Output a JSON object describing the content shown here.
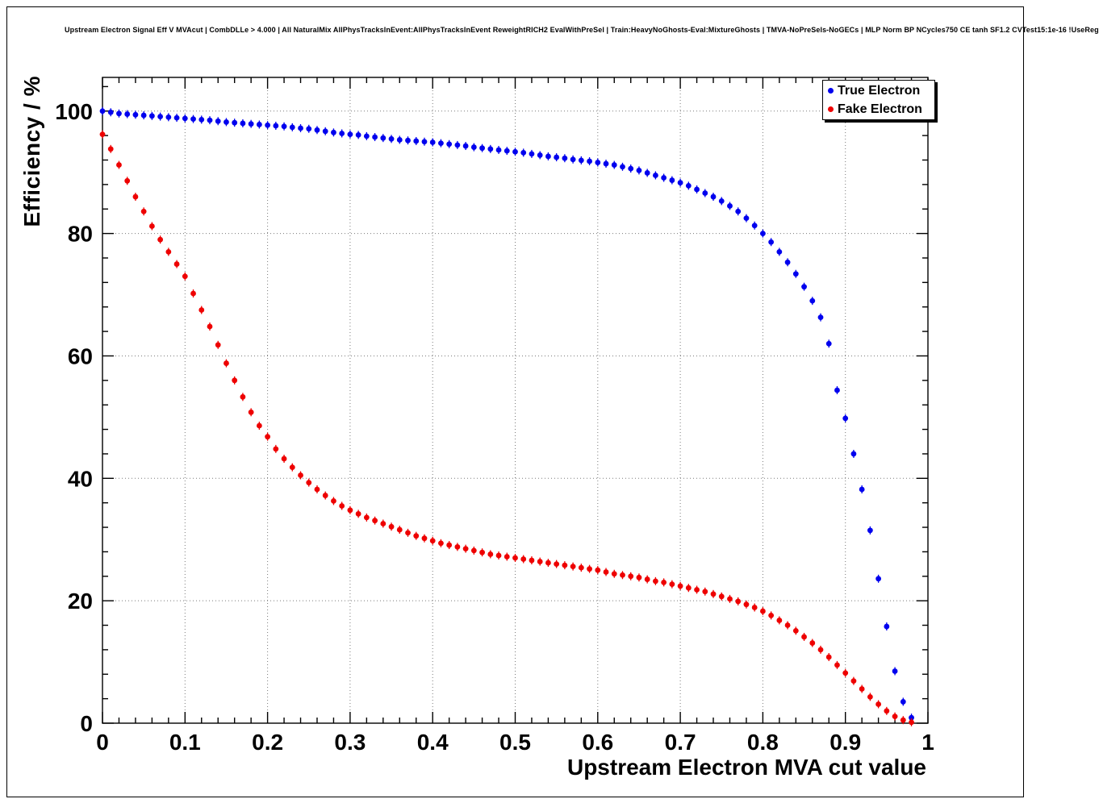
{
  "title": "Upstream Electron Signal Eff V MVAcut | CombDLLe > 4.000 | All NaturalMix AllPhysTracksInEvent:AllPhysTracksInEvent ReweightRICH2 EvalWithPreSel | Train:HeavyNoGhosts-Eval:MixtureGhosts | TMVA-NoPreSels-NoGECs | MLP Norm BP NCycles750 CE tanh SF1.2 CVTest15:1e-16 !UseReg",
  "chart_data": {
    "type": "scatter",
    "title": "Upstream Electron Signal Eff V MVAcut",
    "xlabel": "Upstream Electron MVA cut value",
    "ylabel": "Efficiency / %",
    "xlim": [
      0,
      1
    ],
    "ylim": [
      0,
      105.5
    ],
    "xticks": [
      0,
      0.1,
      0.2,
      0.3,
      0.4,
      0.5,
      0.6,
      0.7,
      0.8,
      0.9,
      1
    ],
    "xtick_labels": [
      "0",
      "0.1",
      "0.2",
      "0.3",
      "0.4",
      "0.5",
      "0.6",
      "0.7",
      "0.8",
      "0.9",
      "1"
    ],
    "yticks": [
      0,
      20,
      40,
      60,
      80,
      100
    ],
    "grid": "dotted",
    "legend_position": "top-right",
    "marker": "filled-circle",
    "x": [
      0.0,
      0.01,
      0.02,
      0.03,
      0.04,
      0.05,
      0.06,
      0.07,
      0.08,
      0.09,
      0.1,
      0.11,
      0.12,
      0.13,
      0.14,
      0.15,
      0.16,
      0.17,
      0.18,
      0.19,
      0.2,
      0.21,
      0.22,
      0.23,
      0.24,
      0.25,
      0.26,
      0.27,
      0.28,
      0.29,
      0.3,
      0.31,
      0.32,
      0.33,
      0.34,
      0.35,
      0.36,
      0.37,
      0.38,
      0.39,
      0.4,
      0.41,
      0.42,
      0.43,
      0.44,
      0.45,
      0.46,
      0.47,
      0.48,
      0.49,
      0.5,
      0.51,
      0.52,
      0.53,
      0.54,
      0.55,
      0.56,
      0.57,
      0.58,
      0.59,
      0.6,
      0.61,
      0.62,
      0.63,
      0.64,
      0.65,
      0.66,
      0.67,
      0.68,
      0.69,
      0.7,
      0.71,
      0.72,
      0.73,
      0.74,
      0.75,
      0.76,
      0.77,
      0.78,
      0.79,
      0.8,
      0.81,
      0.82,
      0.83,
      0.84,
      0.85,
      0.86,
      0.87,
      0.88,
      0.89,
      0.9,
      0.91,
      0.92,
      0.93,
      0.94,
      0.95,
      0.96,
      0.97,
      0.98
    ],
    "series": [
      {
        "name": "True Electron",
        "color": "#0000ee",
        "y": [
          100.0,
          99.8,
          99.6,
          99.5,
          99.4,
          99.3,
          99.2,
          99.1,
          99.0,
          98.9,
          98.8,
          98.7,
          98.6,
          98.5,
          98.35,
          98.2,
          98.1,
          98.0,
          97.9,
          97.8,
          97.7,
          97.6,
          97.5,
          97.35,
          97.2,
          97.1,
          96.9,
          96.7,
          96.5,
          96.35,
          96.2,
          96.1,
          95.9,
          95.75,
          95.6,
          95.45,
          95.3,
          95.2,
          95.1,
          95.0,
          94.9,
          94.75,
          94.6,
          94.45,
          94.3,
          94.1,
          93.95,
          93.8,
          93.65,
          93.5,
          93.35,
          93.2,
          93.0,
          92.8,
          92.6,
          92.45,
          92.3,
          92.1,
          91.95,
          91.8,
          91.6,
          91.4,
          91.2,
          90.9,
          90.6,
          90.3,
          89.9,
          89.5,
          89.1,
          88.7,
          88.3,
          87.8,
          87.2,
          86.6,
          86.0,
          85.3,
          84.5,
          83.6,
          82.5,
          81.3,
          80.0,
          78.6,
          77.0,
          75.3,
          73.4,
          71.3,
          69.0,
          66.3,
          62.0,
          54.4,
          49.8,
          44.0,
          38.2,
          31.5,
          23.6,
          15.8,
          8.5,
          3.5,
          0.9
        ]
      },
      {
        "name": "Fake Electron",
        "color": "#ee0000",
        "y": [
          96.2,
          93.8,
          91.2,
          88.6,
          86.0,
          83.6,
          81.2,
          79.0,
          77.0,
          75.0,
          73.0,
          70.2,
          67.5,
          64.8,
          61.8,
          58.8,
          56.0,
          53.3,
          50.8,
          48.6,
          46.8,
          44.8,
          43.2,
          41.8,
          40.5,
          39.3,
          38.2,
          37.2,
          36.3,
          35.5,
          34.8,
          34.2,
          33.6,
          33.1,
          32.6,
          32.1,
          31.6,
          31.1,
          30.6,
          30.2,
          29.8,
          29.4,
          29.1,
          28.8,
          28.5,
          28.2,
          27.9,
          27.6,
          27.4,
          27.2,
          27.0,
          26.8,
          26.6,
          26.4,
          26.2,
          26.0,
          25.8,
          25.6,
          25.4,
          25.2,
          25.0,
          24.7,
          24.4,
          24.2,
          24.0,
          23.8,
          23.5,
          23.2,
          23.0,
          22.7,
          22.4,
          22.1,
          21.8,
          21.5,
          21.1,
          20.7,
          20.3,
          19.9,
          19.4,
          18.9,
          18.3,
          17.6,
          16.8,
          16.0,
          15.1,
          14.1,
          13.1,
          12.0,
          10.8,
          9.5,
          8.2,
          6.9,
          5.6,
          4.3,
          3.1,
          2.0,
          1.1,
          0.5,
          0.15
        ]
      }
    ]
  }
}
